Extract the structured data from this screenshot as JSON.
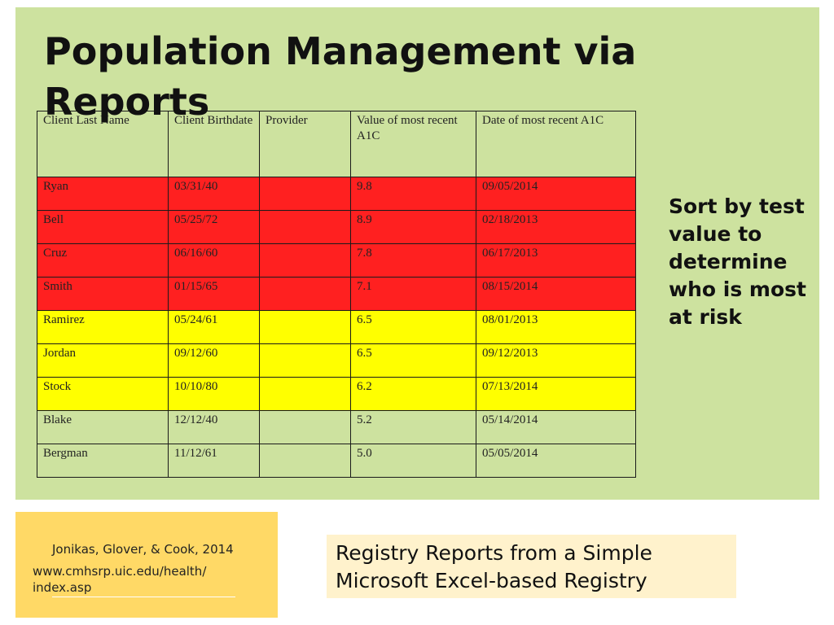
{
  "slide": {
    "title": "Population Management via Reports",
    "side_note": "Sort by test value to determine who is most at risk",
    "citation": {
      "authors": "Jonikas, Glover, & Cook, 2014",
      "url": "www.cmhsrp.uic.edu/health/ index.asp"
    },
    "caption": "Registry Reports from a Simple Microsoft Excel-based Registry"
  },
  "colors": {
    "background_panel": "#cde29f",
    "high_risk_row": "#ff2020",
    "moderate_risk_row": "#ffff00",
    "citation_box": "#ffd966",
    "caption_box": "#fff2cc"
  },
  "table": {
    "headers": [
      "Client Last Name",
      "Client Birthdate",
      "Provider",
      "Value of most recent A1C",
      "Date of most recent A1C"
    ],
    "rows": [
      {
        "risk": "red",
        "cells": [
          "Ryan",
          "03/31/40",
          "",
          "9.8",
          "09/05/2014"
        ]
      },
      {
        "risk": "red",
        "cells": [
          "Bell",
          "05/25/72",
          "",
          "8.9",
          "02/18/2013"
        ]
      },
      {
        "risk": "red",
        "cells": [
          "Cruz",
          "06/16/60",
          "",
          "7.8",
          "06/17/2013"
        ]
      },
      {
        "risk": "red",
        "cells": [
          "Smith",
          "01/15/65",
          "",
          "7.1",
          "08/15/2014"
        ]
      },
      {
        "risk": "yellow",
        "cells": [
          "Ramirez",
          "05/24/61",
          "",
          "6.5",
          "08/01/2013"
        ]
      },
      {
        "risk": "yellow",
        "cells": [
          "Jordan",
          "09/12/60",
          "",
          "6.5",
          "09/12/2013"
        ]
      },
      {
        "risk": "yellow",
        "cells": [
          "Stock",
          "10/10/80",
          "",
          "6.2",
          "07/13/2014"
        ]
      },
      {
        "risk": "none",
        "cells": [
          "Blake",
          "12/12/40",
          "",
          "5.2",
          "05/14/2014"
        ]
      },
      {
        "risk": "none",
        "cells": [
          "Bergman",
          "11/12/61",
          "",
          "5.0",
          "05/05/2014"
        ]
      }
    ]
  }
}
